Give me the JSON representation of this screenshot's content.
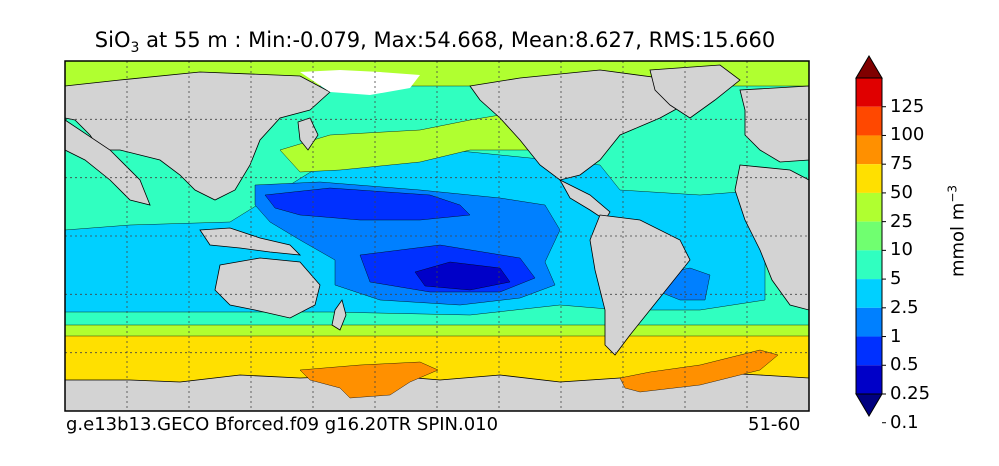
{
  "title": {
    "prefix": "SiO",
    "subscript": "3",
    "suffix": " at 55 m : Min:-0.079, Max:54.668, Mean:8.627, RMS:15.660"
  },
  "footer": {
    "left": "g.e13b13.GECO Bforced.f09 g16.20TR SPIN.010",
    "right": "51-60"
  },
  "colorbar": {
    "units_text": "mmol m",
    "units_exponent": "−3",
    "levels": [
      "125",
      "100",
      "75",
      "50",
      "25",
      "10",
      "5",
      "2.5",
      "1",
      "0.5",
      "0.25",
      "0.1"
    ],
    "colors": [
      "#000080",
      "#0000c8",
      "#0030ff",
      "#0080ff",
      "#00d0ff",
      "#30ffc0",
      "#70ff70",
      "#b0ff30",
      "#ffe000",
      "#ff9000",
      "#ff4800",
      "#e00000",
      "#800000"
    ]
  },
  "map_colors": {
    "land": "#d3d3d3",
    "sea_ice": "#ffffff",
    "grid": "#444444"
  }
}
